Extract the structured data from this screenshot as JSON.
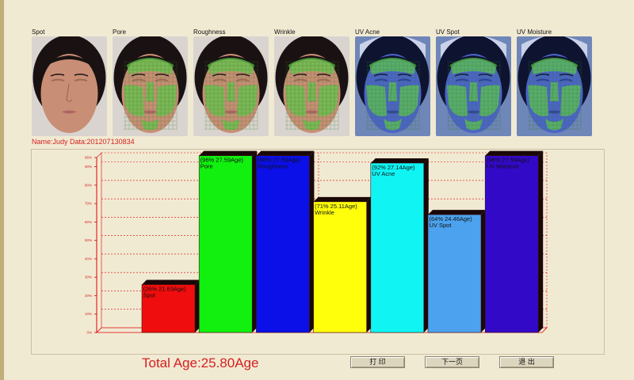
{
  "photos": [
    {
      "label": "Spot",
      "filter": "normal",
      "overlay": "none"
    },
    {
      "label": "Pore",
      "filter": "normal",
      "overlay": "green"
    },
    {
      "label": "Roughness",
      "filter": "normal",
      "overlay": "green"
    },
    {
      "label": "Wrinkle",
      "filter": "normal",
      "overlay": "green"
    },
    {
      "label": "UV Acne",
      "filter": "uv",
      "overlay": "green"
    },
    {
      "label": "UV Spot",
      "filter": "uv",
      "overlay": "green"
    },
    {
      "label": "UV Moisture",
      "filter": "uv",
      "overlay": "green"
    }
  ],
  "record": {
    "name_line": "Name:Judy Data:201207130834"
  },
  "chart_data": {
    "type": "bar",
    "y_ticks": [
      "0%",
      "10%",
      "20%",
      "30%",
      "40%",
      "50%",
      "60%",
      "70%",
      "80%",
      "90%",
      "95%"
    ],
    "ylim": [
      0,
      95
    ],
    "grid": true,
    "bars": [
      {
        "category": "Spot",
        "value": 26,
        "label_top": "(26% 21.63Age)",
        "label_bottom": "Spot",
        "color": "#f00d0d"
      },
      {
        "category": "Pore",
        "value": 96,
        "label_top": "(96% 27.59Age)",
        "label_bottom": "Pore",
        "color": "#11f00f"
      },
      {
        "category": "Roughness",
        "value": 96,
        "label_top": "(96% 27.59Age)",
        "label_bottom": "Roughness",
        "color": "#0b0fe8"
      },
      {
        "category": "Wrinkle",
        "value": 71,
        "label_top": "(71% 25.11Age)",
        "label_bottom": "Wrinkle",
        "color": "#ffff0b"
      },
      {
        "category": "UV Acne",
        "value": 92,
        "label_top": "(92% 27.14Age)",
        "label_bottom": "UV Acne",
        "color": "#10f4f4"
      },
      {
        "category": "UV Spot",
        "value": 64,
        "label_top": "(64% 24.46Age)",
        "label_bottom": "UV Spot",
        "color": "#4ca2ee"
      },
      {
        "category": "UV Moisture",
        "value": 96,
        "label_top": "(96% 27.59Age)",
        "label_bottom": "UV Moisture",
        "color": "#3309c8"
      }
    ]
  },
  "summary": {
    "total_age": "Total Age:25.80Age"
  },
  "buttons": {
    "print": "打 印",
    "next": "下一页",
    "exit": "退 出"
  },
  "colors": {
    "background": "#f1ead3",
    "grid": "#e00000",
    "accent_text": "#d51f1f"
  }
}
